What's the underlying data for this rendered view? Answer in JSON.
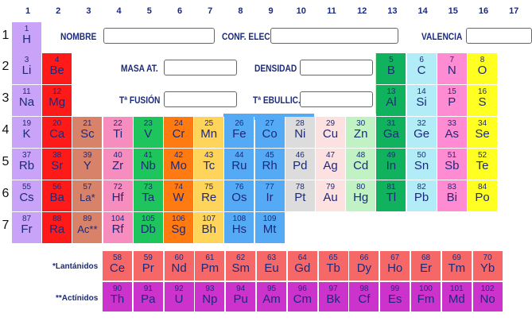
{
  "column_numbers": [
    "1",
    "2",
    "3",
    "4",
    "5",
    "6",
    "7",
    "8",
    "9",
    "10",
    "11",
    "12",
    "13",
    "14",
    "15",
    "16",
    "17"
  ],
  "row_numbers": [
    "1",
    "2",
    "3",
    "4",
    "5",
    "6",
    "7"
  ],
  "form": {
    "nombre_label": "NOMBRE",
    "conf_elec_label": "CONF. ELEC.",
    "valencia_label": "VALENCIA",
    "masa_label": "MASA AT.",
    "densidad_label": "DENSIDAD",
    "fusion_label": "Tª FUSIÓN",
    "ebullic_label": "Tª EBULLIC.",
    "nombre_value": "",
    "conf_elec_value": "",
    "valencia_value": "",
    "masa_value": "",
    "densidad_value": "",
    "fusion_value": "",
    "ebullic_value": ""
  },
  "series_labels": {
    "lanthanides": "*Lantánidos",
    "actinides": "**Actínidos"
  },
  "colors": {
    "alkali": "#c9a3f7",
    "alkaline": "#ff1a1a",
    "group3": "#d9826a",
    "group4": "#f78cbf",
    "group5": "#1ec45c",
    "group6": "#ff7b12",
    "group7": "#ffd45a",
    "group8_10": "#55aaf5",
    "group10b": "#dcdcdc",
    "group11": "#fde0e0",
    "group12": "#c0f2c4",
    "group13": "#10b25e",
    "group14": "#b2ecf7",
    "group15": "#ff8cd2",
    "group16": "#ffff22",
    "lanthanide": "#f66868",
    "actinide": "#cc33cc",
    "text": "#1b2a7a"
  },
  "elements": [
    {
      "n": "1",
      "s": "H",
      "c": "alkali"
    },
    {
      "n": "3",
      "s": "Li",
      "c": "alkali"
    },
    {
      "n": "4",
      "s": "Be",
      "c": "alkaline"
    },
    {
      "n": "5",
      "s": "B",
      "c": "group13"
    },
    {
      "n": "6",
      "s": "C",
      "c": "group14"
    },
    {
      "n": "7",
      "s": "N",
      "c": "group15"
    },
    {
      "n": "8",
      "s": "O",
      "c": "group16"
    },
    {
      "n": "11",
      "s": "Na",
      "c": "alkali"
    },
    {
      "n": "12",
      "s": "Mg",
      "c": "alkaline"
    },
    {
      "n": "13",
      "s": "Al",
      "c": "group13"
    },
    {
      "n": "14",
      "s": "Si",
      "c": "group14"
    },
    {
      "n": "15",
      "s": "P",
      "c": "group15"
    },
    {
      "n": "16",
      "s": "S",
      "c": "group16"
    },
    {
      "n": "19",
      "s": "K",
      "c": "alkali"
    },
    {
      "n": "20",
      "s": "Ca",
      "c": "alkaline"
    },
    {
      "n": "21",
      "s": "Sc",
      "c": "group3"
    },
    {
      "n": "22",
      "s": "Ti",
      "c": "group4"
    },
    {
      "n": "23",
      "s": "V",
      "c": "group5"
    },
    {
      "n": "24",
      "s": "Cr",
      "c": "group6"
    },
    {
      "n": "25",
      "s": "Mn",
      "c": "group7"
    },
    {
      "n": "26",
      "s": "Fe",
      "c": "group8_10"
    },
    {
      "n": "27",
      "s": "Co",
      "c": "group8_10"
    },
    {
      "n": "28",
      "s": "Ni",
      "c": "group10b"
    },
    {
      "n": "29",
      "s": "Cu",
      "c": "group11"
    },
    {
      "n": "30",
      "s": "Zn",
      "c": "group12"
    },
    {
      "n": "31",
      "s": "Ga",
      "c": "group13"
    },
    {
      "n": "32",
      "s": "Ge",
      "c": "group14"
    },
    {
      "n": "33",
      "s": "As",
      "c": "group15"
    },
    {
      "n": "34",
      "s": "Se",
      "c": "group16"
    },
    {
      "n": "37",
      "s": "Rb",
      "c": "alkali"
    },
    {
      "n": "38",
      "s": "Sr",
      "c": "alkaline"
    },
    {
      "n": "39",
      "s": "Y",
      "c": "group3"
    },
    {
      "n": "40",
      "s": "Zr",
      "c": "group4"
    },
    {
      "n": "41",
      "s": "Nb",
      "c": "group5"
    },
    {
      "n": "42",
      "s": "Mo",
      "c": "group6"
    },
    {
      "n": "43",
      "s": "Tc",
      "c": "group7"
    },
    {
      "n": "44",
      "s": "Ru",
      "c": "group8_10"
    },
    {
      "n": "45",
      "s": "Rh",
      "c": "group8_10"
    },
    {
      "n": "46",
      "s": "Pd",
      "c": "group10b"
    },
    {
      "n": "47",
      "s": "Ag",
      "c": "group11"
    },
    {
      "n": "48",
      "s": "Cd",
      "c": "group12"
    },
    {
      "n": "49",
      "s": "In",
      "c": "group13"
    },
    {
      "n": "50",
      "s": "Sn",
      "c": "group14"
    },
    {
      "n": "51",
      "s": "Sb",
      "c": "group15"
    },
    {
      "n": "52",
      "s": "Te",
      "c": "group16"
    },
    {
      "n": "55",
      "s": "Cs",
      "c": "alkali"
    },
    {
      "n": "56",
      "s": "Ba",
      "c": "alkaline"
    },
    {
      "n": "57",
      "s": "La*",
      "c": "group3"
    },
    {
      "n": "72",
      "s": "Hf",
      "c": "group4"
    },
    {
      "n": "73",
      "s": "Ta",
      "c": "group5"
    },
    {
      "n": "74",
      "s": "W",
      "c": "group6"
    },
    {
      "n": "75",
      "s": "Re",
      "c": "group7"
    },
    {
      "n": "76",
      "s": "Os",
      "c": "group8_10"
    },
    {
      "n": "77",
      "s": "Ir",
      "c": "group8_10"
    },
    {
      "n": "78",
      "s": "Pt",
      "c": "group10b"
    },
    {
      "n": "79",
      "s": "Au",
      "c": "group11"
    },
    {
      "n": "80",
      "s": "Hg",
      "c": "group12"
    },
    {
      "n": "81",
      "s": "Tl",
      "c": "group13"
    },
    {
      "n": "82",
      "s": "Pb",
      "c": "group14"
    },
    {
      "n": "83",
      "s": "Bi",
      "c": "group15"
    },
    {
      "n": "84",
      "s": "Po",
      "c": "group16"
    },
    {
      "n": "87",
      "s": "Fr",
      "c": "alkali"
    },
    {
      "n": "88",
      "s": "Ra",
      "c": "alkaline"
    },
    {
      "n": "89",
      "s": "Ac**",
      "c": "group3"
    },
    {
      "n": "104",
      "s": "Rf",
      "c": "group4"
    },
    {
      "n": "105",
      "s": "Db",
      "c": "group5"
    },
    {
      "n": "106",
      "s": "Sg",
      "c": "group6"
    },
    {
      "n": "107",
      "s": "Bh",
      "c": "group7"
    },
    {
      "n": "108",
      "s": "Hs",
      "c": "group8_10"
    },
    {
      "n": "109",
      "s": "Mt",
      "c": "group8_10"
    }
  ],
  "lanthanides": [
    {
      "n": "58",
      "s": "Ce"
    },
    {
      "n": "59",
      "s": "Pr"
    },
    {
      "n": "60",
      "s": "Nd"
    },
    {
      "n": "61",
      "s": "Pm"
    },
    {
      "n": "62",
      "s": "Sm"
    },
    {
      "n": "63",
      "s": "Eu"
    },
    {
      "n": "64",
      "s": "Gd"
    },
    {
      "n": "65",
      "s": "Tb"
    },
    {
      "n": "66",
      "s": "Dy"
    },
    {
      "n": "67",
      "s": "Ho"
    },
    {
      "n": "68",
      "s": "Er"
    },
    {
      "n": "69",
      "s": "Tm"
    },
    {
      "n": "70",
      "s": "Yb"
    }
  ],
  "actinides": [
    {
      "n": "90",
      "s": "Th"
    },
    {
      "n": "91",
      "s": "Pa"
    },
    {
      "n": "92",
      "s": "U"
    },
    {
      "n": "93",
      "s": "Np"
    },
    {
      "n": "94",
      "s": "Pu"
    },
    {
      "n": "95",
      "s": "Am"
    },
    {
      "n": "96",
      "s": "Cm"
    },
    {
      "n": "97",
      "s": "Bk"
    },
    {
      "n": "98",
      "s": "Cf"
    },
    {
      "n": "99",
      "s": "Es"
    },
    {
      "n": "100",
      "s": "Fm"
    },
    {
      "n": "101",
      "s": "Md"
    },
    {
      "n": "102",
      "s": "No"
    }
  ]
}
